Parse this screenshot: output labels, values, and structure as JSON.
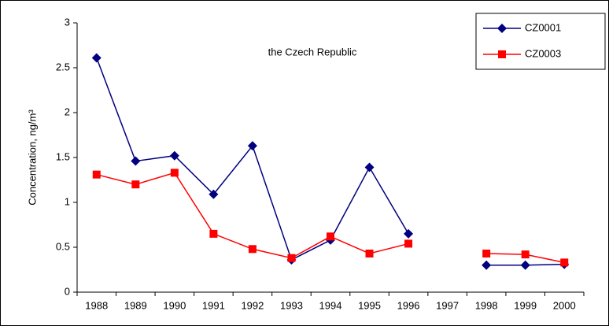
{
  "chart_data": {
    "type": "line",
    "title": "the Czech Republic",
    "y_label": "Concentration, ng/m³",
    "categories": [
      "1988",
      "1989",
      "1990",
      "1991",
      "1992",
      "1993",
      "1994",
      "1995",
      "1996",
      "1997",
      "1998",
      "1999",
      "2000"
    ],
    "series": [
      {
        "name": "CZ0001",
        "color": "#000080",
        "marker": "diamond",
        "values": [
          2.61,
          1.46,
          1.52,
          1.09,
          1.63,
          0.36,
          0.58,
          1.39,
          0.65,
          null,
          0.3,
          0.3,
          0.31
        ]
      },
      {
        "name": "CZ0003",
        "color": "#ff0000",
        "marker": "square",
        "values": [
          1.31,
          1.2,
          1.33,
          0.65,
          0.48,
          0.38,
          0.62,
          0.43,
          0.54,
          null,
          0.43,
          0.42,
          0.33
        ]
      }
    ],
    "ylim": [
      0,
      3
    ],
    "yticks": [
      0,
      0.5,
      1,
      1.5,
      2,
      2.5,
      3
    ],
    "grid": false,
    "legend": "top-right"
  }
}
